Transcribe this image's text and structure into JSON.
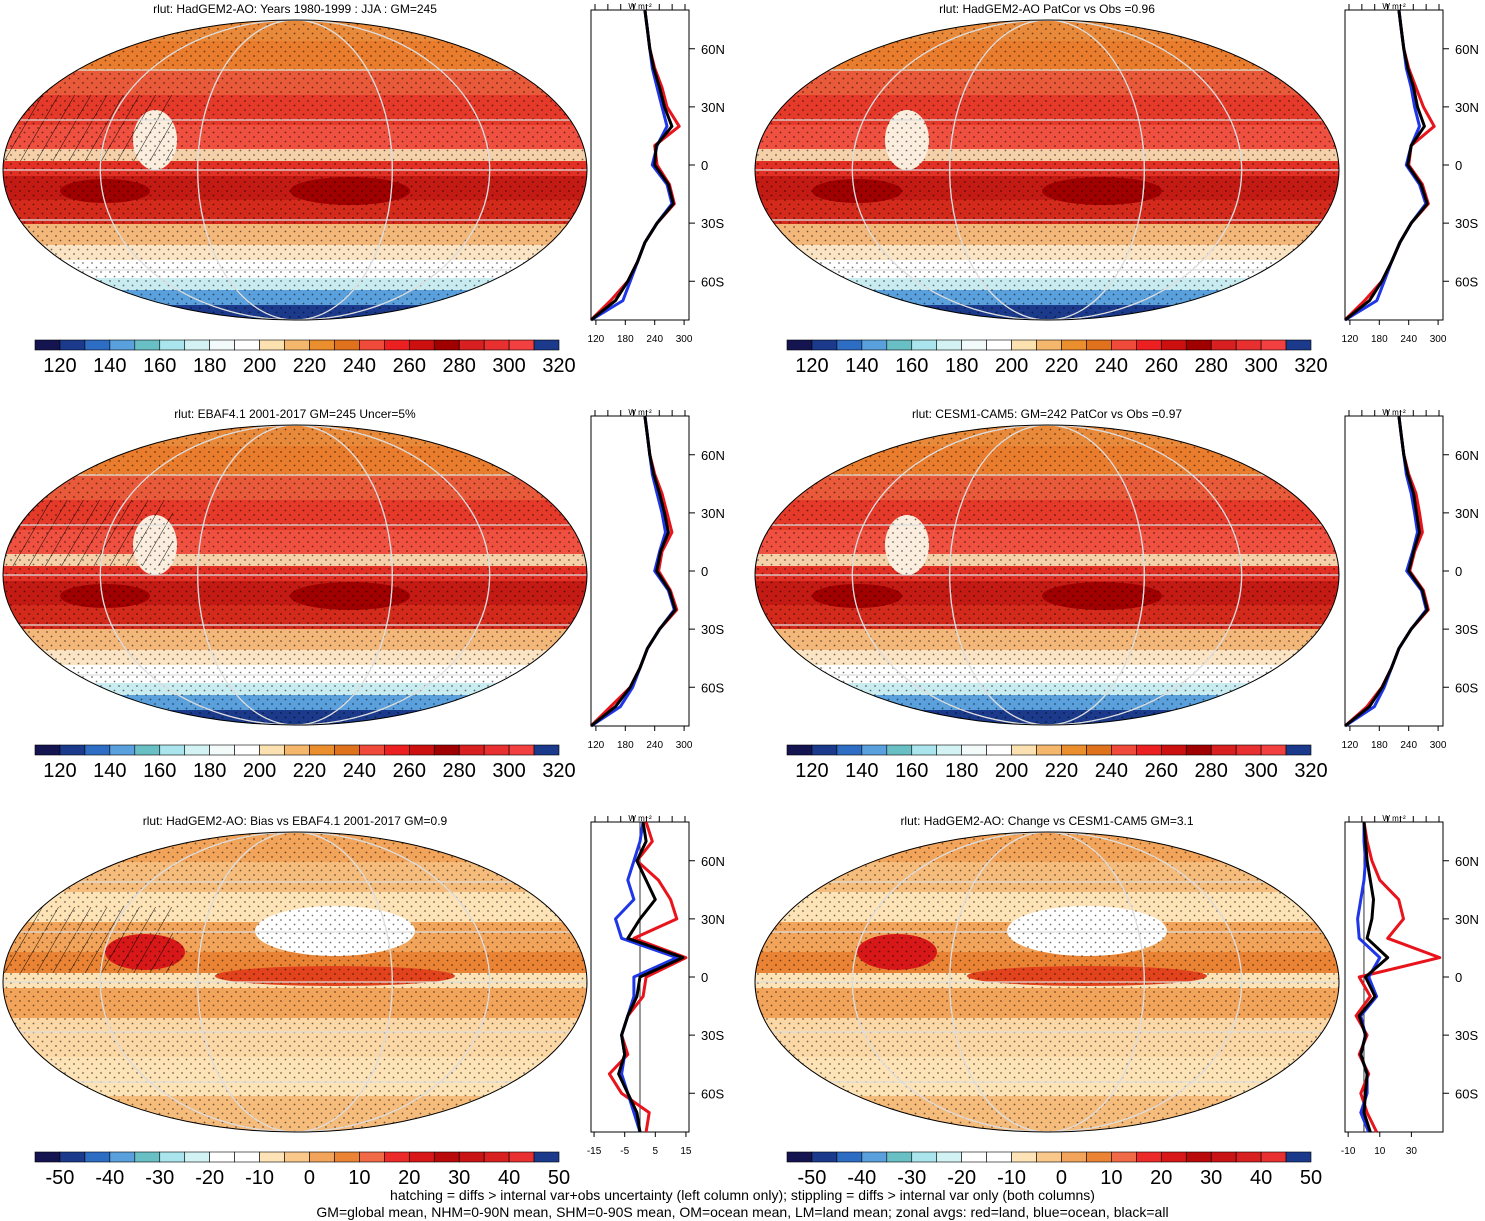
{
  "figure": {
    "footnote_line1": "hatching = diffs > internal var+obs uncertainty (left column only); stippling = diffs > internal var only (both columns)",
    "footnote_line2": "GM=global mean, NHM=0-90N mean, SHM=0-90S mean, OM=ocean mean, LM=land mean; zonal avgs: red=land, blue=ocean, black=all"
  },
  "colors": {
    "land": "#e8131b",
    "ocean": "#1f36e8",
    "all": "#000000",
    "abs_scale": [
      "#141450",
      "#1b3a8c",
      "#2d6ec4",
      "#5aa0dc",
      "#69c0c4",
      "#aae4ec",
      "#d2f2f4",
      "#f2fafa",
      "#ffffff",
      "#fbe0b0",
      "#f4b76c",
      "#ea8e2e",
      "#e0721e",
      "#f04a3a",
      "#ec2020",
      "#cc1010",
      "#a00000",
      "#d82020",
      "#e83030",
      "#f24040",
      "#1b3a8c"
    ],
    "diff_scale": [
      "#141450",
      "#1b3a8c",
      "#2d6ec4",
      "#5aa0dc",
      "#69c0c4",
      "#aae4ec",
      "#d2f2f4",
      "#ffffff",
      "#ffffff",
      "#fde3b6",
      "#f9c88a",
      "#f2a45a",
      "#ea8434",
      "#f06a48",
      "#ec2a2a",
      "#d81818",
      "#b80a0a",
      "#c81414",
      "#d82020",
      "#e83030",
      "#1b3a8c"
    ]
  },
  "chart_data": [
    {
      "type": "heatmap",
      "title": "rlut: HadGEM2-AO: Years 1980-1999 : JJA : GM=245",
      "colorbar_labels": [
        "120",
        "140",
        "160",
        "180",
        "200",
        "220",
        "240",
        "260",
        "280",
        "300",
        "320"
      ],
      "zonal": {
        "units": "W m⁻²",
        "x_ticks": [
          "120",
          "180",
          "240",
          "300"
        ],
        "xlim": [
          110,
          310
        ],
        "x_ticks_values": [
          120,
          180,
          240,
          300
        ],
        "lat_labels": [
          "60N",
          "30N",
          "0",
          "30S",
          "60S"
        ],
        "lat": [
          -80,
          -70,
          -60,
          -50,
          -40,
          -30,
          -20,
          -10,
          0,
          10,
          20,
          30,
          40,
          50,
          60,
          70,
          80
        ],
        "land": [
          110,
          150,
          185,
          205,
          220,
          245,
          280,
          270,
          245,
          240,
          290,
          265,
          255,
          240,
          230,
          225,
          220
        ],
        "ocean": [
          110,
          175,
          190,
          205,
          220,
          245,
          275,
          265,
          235,
          245,
          265,
          255,
          245,
          235,
          230,
          225,
          220
        ],
        "all": [
          110,
          160,
          185,
          205,
          220,
          245,
          278,
          268,
          240,
          243,
          275,
          260,
          250,
          238,
          230,
          225,
          220
        ]
      }
    },
    {
      "type": "heatmap",
      "title": "rlut: HadGEM2-AO PatCor vs Obs =0.96",
      "colorbar_labels": [
        "120",
        "140",
        "160",
        "180",
        "200",
        "220",
        "240",
        "260",
        "280",
        "300",
        "320"
      ],
      "zonal": {
        "units": "W m⁻²",
        "x_ticks": [
          "120",
          "180",
          "240",
          "300"
        ],
        "xlim": [
          110,
          310
        ],
        "x_ticks_values": [
          120,
          180,
          240,
          300
        ],
        "lat_labels": [
          "60N",
          "30N",
          "0",
          "30S",
          "60S"
        ],
        "lat": [
          -80,
          -70,
          -60,
          -50,
          -40,
          -30,
          -20,
          -10,
          0,
          10,
          20,
          30,
          40,
          50,
          60,
          70,
          80
        ],
        "land": [
          110,
          150,
          185,
          205,
          222,
          245,
          280,
          268,
          240,
          245,
          292,
          270,
          255,
          240,
          230,
          225,
          220
        ],
        "ocean": [
          110,
          175,
          190,
          205,
          222,
          245,
          275,
          262,
          235,
          245,
          262,
          252,
          245,
          235,
          230,
          225,
          220
        ],
        "all": [
          110,
          160,
          185,
          205,
          222,
          245,
          278,
          265,
          238,
          245,
          272,
          258,
          250,
          238,
          230,
          225,
          220
        ]
      }
    },
    {
      "type": "heatmap",
      "title": "rlut: EBAF4.1 2001-2017 GM=245 Uncer=5%",
      "colorbar_labels": [
        "120",
        "140",
        "160",
        "180",
        "200",
        "220",
        "240",
        "260",
        "280",
        "300",
        "320"
      ],
      "zonal": {
        "units": "W m⁻²",
        "x_ticks": [
          "120",
          "180",
          "240",
          "300"
        ],
        "xlim": [
          110,
          310
        ],
        "x_ticks_values": [
          120,
          180,
          240,
          300
        ],
        "lat_labels": [
          "60N",
          "30N",
          "0",
          "30S",
          "60S"
        ],
        "lat": [
          -80,
          -70,
          -60,
          -50,
          -40,
          -30,
          -20,
          -10,
          0,
          10,
          20,
          30,
          40,
          50,
          60,
          70,
          80
        ],
        "land": [
          110,
          150,
          190,
          210,
          225,
          250,
          285,
          272,
          248,
          255,
          275,
          265,
          255,
          240,
          230,
          225,
          220
        ],
        "ocean": [
          110,
          170,
          195,
          210,
          225,
          250,
          280,
          268,
          240,
          250,
          262,
          255,
          245,
          235,
          230,
          225,
          220
        ],
        "all": [
          110,
          160,
          190,
          210,
          225,
          250,
          282,
          270,
          244,
          252,
          268,
          260,
          250,
          238,
          230,
          225,
          220
        ]
      }
    },
    {
      "type": "heatmap",
      "title": "rlut: CESM1-CAM5: GM=242 PatCor vs Obs =0.97",
      "colorbar_labels": [
        "120",
        "140",
        "160",
        "180",
        "200",
        "220",
        "240",
        "260",
        "280",
        "300",
        "320"
      ],
      "zonal": {
        "units": "W m⁻²",
        "x_ticks": [
          "120",
          "180",
          "240",
          "300"
        ],
        "xlim": [
          110,
          310
        ],
        "x_ticks_values": [
          120,
          180,
          240,
          300
        ],
        "lat_labels": [
          "60N",
          "30N",
          "0",
          "30S",
          "60S"
        ],
        "lat": [
          -80,
          -70,
          -60,
          -50,
          -40,
          -30,
          -20,
          -10,
          0,
          10,
          20,
          30,
          40,
          50,
          60,
          70,
          80
        ],
        "land": [
          110,
          155,
          185,
          205,
          220,
          245,
          280,
          270,
          242,
          252,
          268,
          262,
          255,
          240,
          230,
          225,
          220
        ],
        "ocean": [
          110,
          170,
          190,
          205,
          220,
          245,
          276,
          266,
          236,
          248,
          258,
          252,
          245,
          235,
          230,
          225,
          220
        ],
        "all": [
          110,
          160,
          186,
          205,
          220,
          245,
          278,
          268,
          240,
          250,
          262,
          256,
          250,
          238,
          230,
          225,
          220
        ]
      }
    },
    {
      "type": "heatmap",
      "title": "rlut: HadGEM2-AO: Bias vs EBAF4.1 2001-2017 GM=0.9",
      "colorbar_labels": [
        "-50",
        "-40",
        "-30",
        "-20",
        "-10",
        "0",
        "10",
        "20",
        "30",
        "40",
        "50"
      ],
      "zonal": {
        "units": "W m⁻²",
        "x_ticks": [
          "-15",
          "-5",
          "5",
          "15"
        ],
        "xlim": [
          -16,
          16
        ],
        "x_ticks_values": [
          -15,
          -5,
          5,
          15
        ],
        "zero_line": true,
        "lat_labels": [
          "60N",
          "30N",
          "0",
          "30S",
          "60S"
        ],
        "lat": [
          -80,
          -70,
          -60,
          -50,
          -40,
          -30,
          -20,
          -10,
          0,
          10,
          20,
          30,
          40,
          50,
          60,
          70,
          80
        ],
        "land": [
          2,
          3,
          -6,
          -10,
          -4,
          -6,
          -4,
          1,
          2,
          15,
          -2,
          12,
          10,
          6,
          -1,
          4,
          2
        ],
        "ocean": [
          0,
          -2,
          -4,
          -6,
          -5,
          -6,
          -4,
          -2,
          -2,
          12,
          -6,
          -8,
          -2,
          -4,
          -2,
          0,
          1
        ],
        "all": [
          0,
          -1,
          -4,
          -7,
          -5,
          -6,
          -4,
          -1,
          0,
          14,
          -4,
          0,
          5,
          2,
          -1,
          2,
          1
        ]
      }
    },
    {
      "type": "heatmap",
      "title": "rlut: HadGEM2-AO: Change vs CESM1-CAM5 GM=3.1",
      "colorbar_labels": [
        "-50",
        "-40",
        "-30",
        "-20",
        "-10",
        "0",
        "10",
        "20",
        "30",
        "40",
        "50"
      ],
      "zonal": {
        "units": "W m⁻²",
        "x_ticks": [
          "-10",
          "10",
          "30"
        ],
        "xlim": [
          -12,
          50
        ],
        "x_ticks_values": [
          -10,
          10,
          30
        ],
        "zero_line": true,
        "lat_labels": [
          "60N",
          "30N",
          "0",
          "30S",
          "60S"
        ],
        "lat": [
          -80,
          -70,
          -60,
          -50,
          -40,
          -30,
          -20,
          -10,
          0,
          10,
          20,
          30,
          40,
          50,
          60,
          70,
          80
        ],
        "land": [
          8,
          2,
          -2,
          3,
          -3,
          2,
          -5,
          4,
          -3,
          48,
          15,
          25,
          22,
          10,
          5,
          2,
          0
        ],
        "ocean": [
          3,
          -2,
          2,
          2,
          -2,
          1,
          -2,
          8,
          3,
          10,
          -3,
          -4,
          -2,
          0,
          1,
          0,
          0
        ],
        "all": [
          4,
          0,
          1,
          2,
          -2,
          1,
          -3,
          7,
          1,
          15,
          2,
          5,
          6,
          4,
          2,
          1,
          0
        ]
      }
    }
  ]
}
